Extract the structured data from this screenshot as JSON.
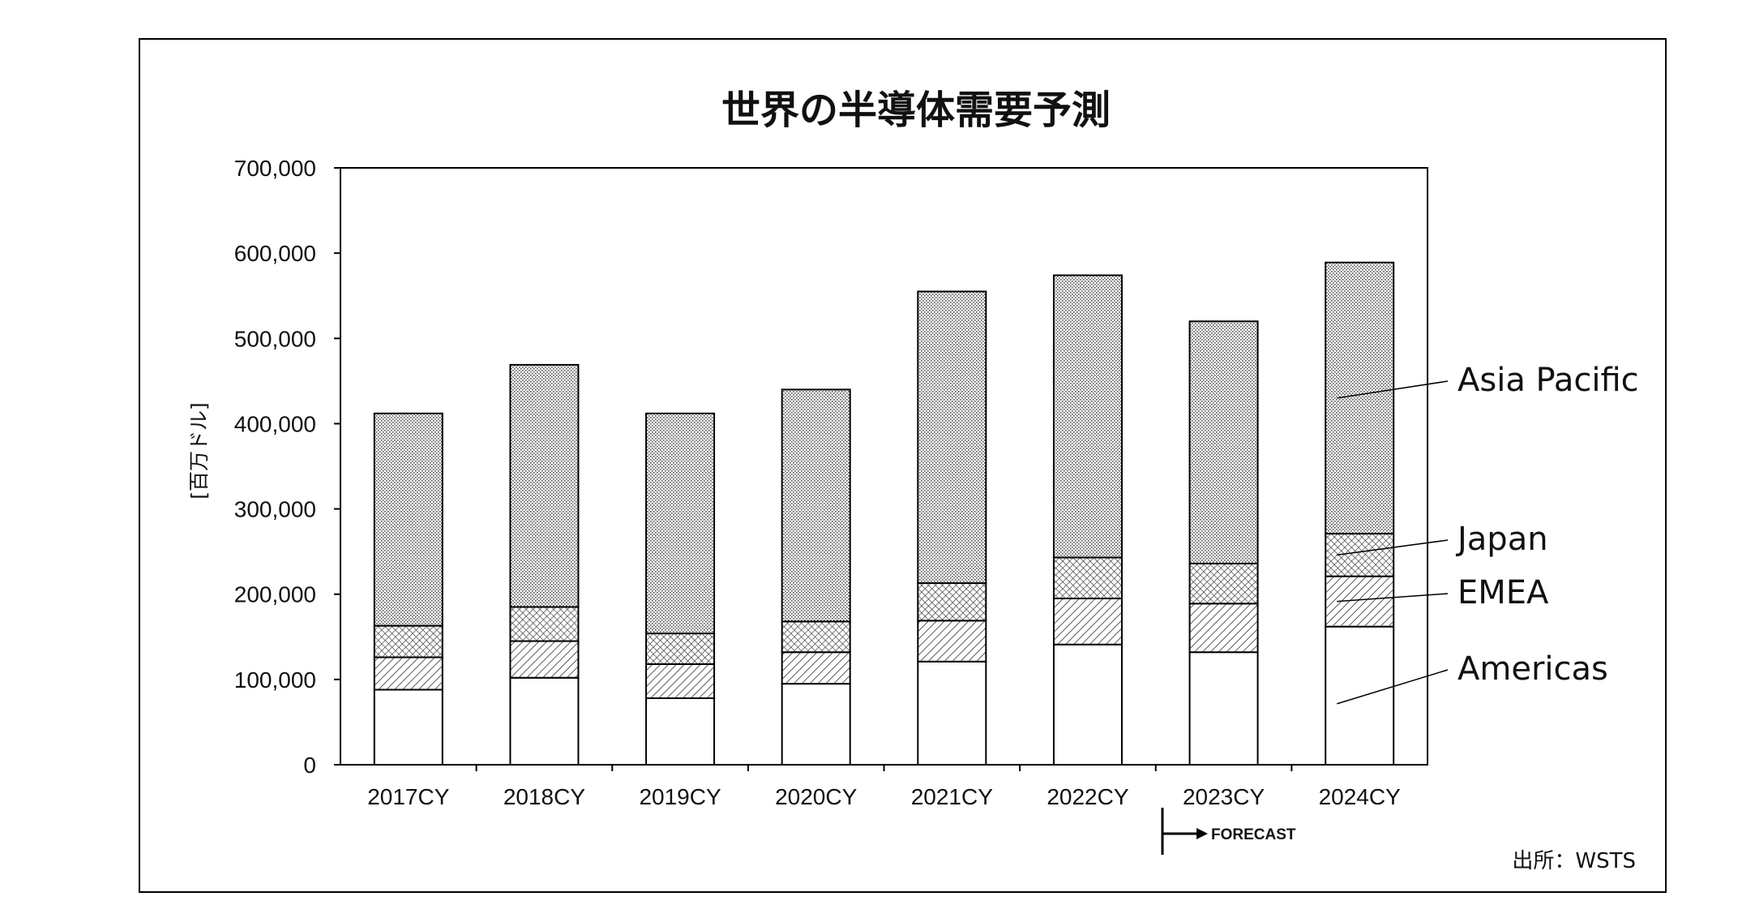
{
  "chart_data": {
    "type": "bar",
    "stacked": true,
    "title": "世界の半導体需要予測",
    "ylabel": "[百万ドル]",
    "xlabel": "",
    "ylim": [
      0,
      700000
    ],
    "yticks": [
      0,
      100000,
      200000,
      300000,
      400000,
      500000,
      600000,
      700000
    ],
    "ytick_labels": [
      "0",
      "100,000",
      "200,000",
      "300,000",
      "400,000",
      "500,000",
      "600,000",
      "700,000"
    ],
    "categories": [
      "2017CY",
      "2018CY",
      "2019CY",
      "2020CY",
      "2021CY",
      "2022CY",
      "2023CY",
      "2024CY"
    ],
    "series": [
      {
        "name": "Americas",
        "pattern": "none",
        "values": [
          88000,
          102000,
          78000,
          95000,
          121000,
          141000,
          132000,
          162000
        ]
      },
      {
        "name": "EMEA",
        "pattern": "hatch",
        "values": [
          38000,
          43000,
          40000,
          37000,
          48000,
          54000,
          57000,
          59000
        ]
      },
      {
        "name": "Japan",
        "pattern": "crosshatch",
        "values": [
          37000,
          40000,
          36000,
          36000,
          44000,
          48000,
          47000,
          50000
        ]
      },
      {
        "name": "Asia Pacific",
        "pattern": "dots",
        "values": [
          249000,
          284000,
          258000,
          272000,
          342000,
          331000,
          284000,
          318000
        ]
      }
    ],
    "legend_placement": "right",
    "legend_order": [
      "Asia Pacific",
      "Japan",
      "EMEA",
      "Americas"
    ],
    "forecast_marker": {
      "label": "FORECAST",
      "starts_at": "2023CY"
    },
    "source": "出所：WSTS",
    "grid": false
  },
  "colors": {
    "bar_fill": "#ffffff",
    "pattern_ink": "#333333",
    "outline": "#000000",
    "background": "#ffffff"
  }
}
